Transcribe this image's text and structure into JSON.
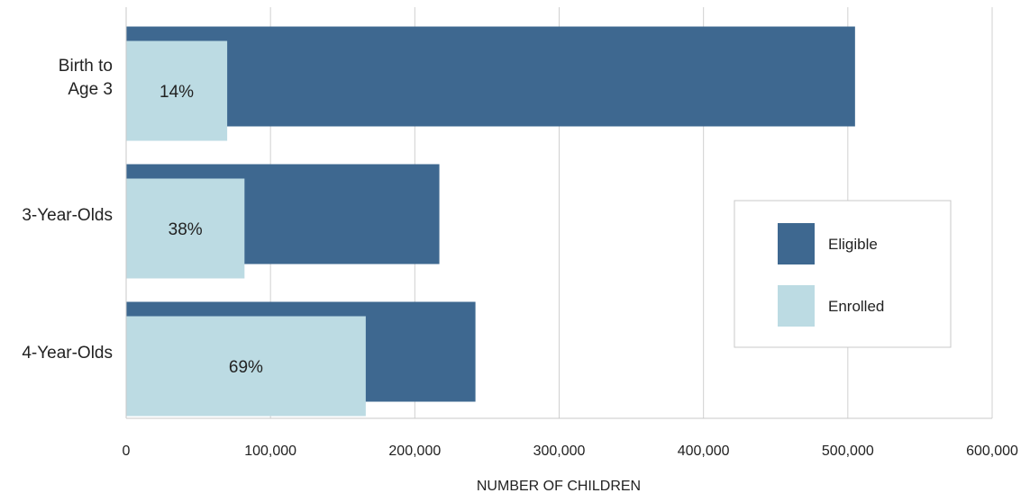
{
  "chart_data": {
    "type": "bar",
    "orientation": "horizontal",
    "categories": [
      [
        "Birth to",
        "Age 3"
      ],
      [
        "3-Year-Olds"
      ],
      [
        "4-Year-Olds"
      ]
    ],
    "series": [
      {
        "name": "Eligible",
        "values": [
          505000,
          217000,
          242000
        ],
        "color": "#3e6890"
      },
      {
        "name": "Enrolled",
        "values": [
          70000,
          82000,
          166000
        ],
        "color": "#bcdbe3"
      }
    ],
    "data_labels": [
      "14%",
      "38%",
      "69%"
    ],
    "xlabel": "NUMBER OF CHILDREN",
    "ylabel": "",
    "xlim": [
      0,
      600000
    ],
    "xticks": [
      0,
      100000,
      200000,
      300000,
      400000,
      500000,
      600000
    ],
    "xtick_labels": [
      "0",
      "100,000",
      "200,000",
      "300,000",
      "400,000",
      "500,000",
      "600,000"
    ],
    "grid": true,
    "legend": {
      "position": "right",
      "entries": [
        "Eligible",
        "Enrolled"
      ]
    }
  }
}
